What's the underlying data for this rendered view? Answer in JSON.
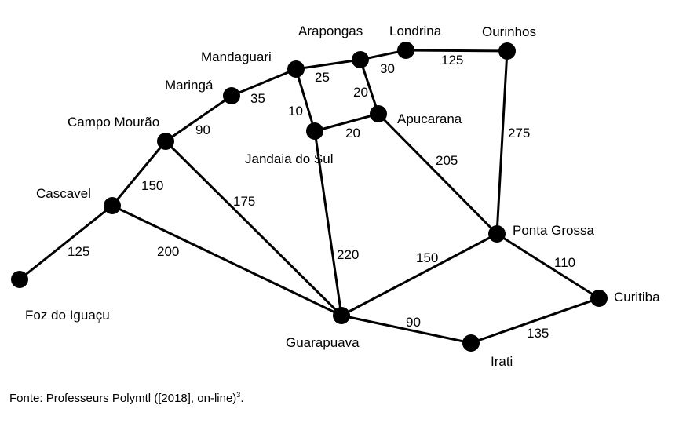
{
  "cities": [
    {
      "id": "foz",
      "name": "Foz do Iguaçu"
    },
    {
      "id": "cascavel",
      "name": "Cascavel"
    },
    {
      "id": "campo",
      "name": "Campo Mourão"
    },
    {
      "id": "maringa",
      "name": "Maringá"
    },
    {
      "id": "mandaguari",
      "name": "Mandaguari"
    },
    {
      "id": "arapongas",
      "name": "Arapongas"
    },
    {
      "id": "londrina",
      "name": "Londrina"
    },
    {
      "id": "ourinhos",
      "name": "Ourinhos"
    },
    {
      "id": "apucarana",
      "name": "Apucarana"
    },
    {
      "id": "jandaia",
      "name": "Jandaia do Sul"
    },
    {
      "id": "guarapuava",
      "name": "Guarapuava"
    },
    {
      "id": "pontagrossa",
      "name": "Ponta Grossa"
    },
    {
      "id": "curitiba",
      "name": "Curitiba"
    },
    {
      "id": "irati",
      "name": "Irati"
    }
  ],
  "edges": [
    {
      "from": "foz",
      "to": "cascavel",
      "weight": "125"
    },
    {
      "from": "cascavel",
      "to": "campo",
      "weight": "150"
    },
    {
      "from": "cascavel",
      "to": "guarapuava",
      "weight": "200"
    },
    {
      "from": "campo",
      "to": "maringa",
      "weight": "90"
    },
    {
      "from": "campo",
      "to": "guarapuava",
      "weight": "175"
    },
    {
      "from": "maringa",
      "to": "mandaguari",
      "weight": "35"
    },
    {
      "from": "mandaguari",
      "to": "arapongas",
      "weight": "25"
    },
    {
      "from": "mandaguari",
      "to": "jandaia",
      "weight": "10"
    },
    {
      "from": "arapongas",
      "to": "londrina",
      "weight": "30"
    },
    {
      "from": "arapongas",
      "to": "apucarana",
      "weight": "20"
    },
    {
      "from": "londrina",
      "to": "ourinhos",
      "weight": "125"
    },
    {
      "from": "jandaia",
      "to": "apucarana",
      "weight": "20"
    },
    {
      "from": "jandaia",
      "to": "guarapuava",
      "weight": "220"
    },
    {
      "from": "apucarana",
      "to": "pontagrossa",
      "weight": "205"
    },
    {
      "from": "ourinhos",
      "to": "pontagrossa",
      "weight": "275"
    },
    {
      "from": "guarapuava",
      "to": "pontagrossa",
      "weight": "150"
    },
    {
      "from": "guarapuava",
      "to": "irati",
      "weight": "90"
    },
    {
      "from": "pontagrossa",
      "to": "curitiba",
      "weight": "110"
    },
    {
      "from": "irati",
      "to": "curitiba",
      "weight": "135"
    }
  ],
  "caption": {
    "text": "Fonte: Professeurs Polymtl ([2018], on-line)",
    "superscript": "3",
    "suffix": "."
  }
}
